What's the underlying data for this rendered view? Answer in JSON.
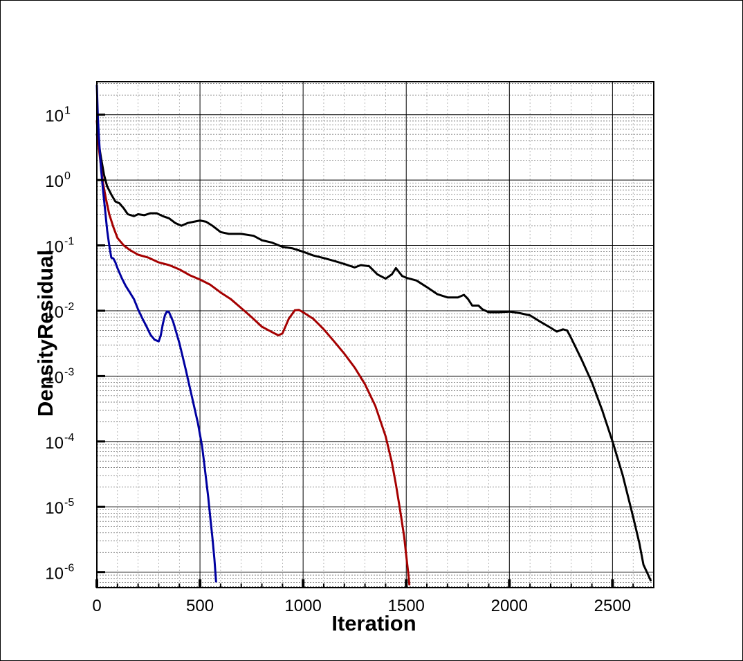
{
  "chart_data": {
    "type": "line",
    "title": "",
    "xlabel": "Iteration",
    "ylabel": "DensityResidual",
    "x_scale": "linear",
    "y_scale": "log",
    "xlim": [
      0,
      2700
    ],
    "ylim": [
      5.8e-07,
      32
    ],
    "grid": true,
    "minor_grid": true,
    "legend": "none",
    "x_ticks": [
      {
        "value": 0,
        "label": "0"
      },
      {
        "value": 500,
        "label": "500"
      },
      {
        "value": 1000,
        "label": "1000"
      },
      {
        "value": 1500,
        "label": "1500"
      },
      {
        "value": 2000,
        "label": "2000"
      },
      {
        "value": 2500,
        "label": "2500"
      }
    ],
    "y_ticks": [
      {
        "value": 10,
        "base": "10",
        "exp": "1"
      },
      {
        "value": 1,
        "base": "10",
        "exp": "0"
      },
      {
        "value": 0.1,
        "base": "10",
        "exp": "-1"
      },
      {
        "value": 0.01,
        "base": "10",
        "exp": "-2"
      },
      {
        "value": 0.001,
        "base": "10",
        "exp": "-3"
      },
      {
        "value": 0.0001,
        "base": "10",
        "exp": "-4"
      },
      {
        "value": 1e-05,
        "base": "10",
        "exp": "-5"
      },
      {
        "value": 1e-06,
        "base": "10",
        "exp": "-6"
      }
    ],
    "series": [
      {
        "color": "#000000",
        "x": [
          0,
          10,
          20,
          35,
          50,
          70,
          90,
          110,
          130,
          150,
          180,
          200,
          230,
          260,
          290,
          320,
          350,
          380,
          410,
          440,
          470,
          500,
          530,
          560,
          600,
          640,
          700,
          760,
          800,
          850,
          900,
          950,
          1000,
          1050,
          1100,
          1150,
          1200,
          1250,
          1280,
          1320,
          1360,
          1400,
          1430,
          1450,
          1480,
          1500,
          1550,
          1600,
          1650,
          1700,
          1750,
          1780,
          1800,
          1820,
          1850,
          1870,
          1900,
          1950,
          2000,
          2050,
          2100,
          2150,
          2200,
          2230,
          2260,
          2280,
          2300,
          2350,
          2400,
          2450,
          2500,
          2550,
          2600,
          2630,
          2650,
          2670,
          2685
        ],
        "y": [
          5,
          3.5,
          2.2,
          1.2,
          0.8,
          0.6,
          0.47,
          0.44,
          0.37,
          0.3,
          0.28,
          0.3,
          0.29,
          0.31,
          0.31,
          0.28,
          0.26,
          0.22,
          0.2,
          0.22,
          0.23,
          0.24,
          0.23,
          0.2,
          0.16,
          0.15,
          0.15,
          0.14,
          0.12,
          0.11,
          0.095,
          0.09,
          0.08,
          0.07,
          0.064,
          0.058,
          0.052,
          0.046,
          0.05,
          0.048,
          0.036,
          0.031,
          0.036,
          0.045,
          0.034,
          0.032,
          0.029,
          0.023,
          0.018,
          0.016,
          0.016,
          0.0175,
          0.015,
          0.012,
          0.012,
          0.0105,
          0.0095,
          0.0095,
          0.0097,
          0.0092,
          0.0085,
          0.0068,
          0.0055,
          0.0048,
          0.0052,
          0.005,
          0.0038,
          0.0018,
          0.0008,
          0.0003,
          0.0001,
          3e-05,
          7e-06,
          2.8e-06,
          1.3e-06,
          9.5e-07,
          7.5e-07
        ]
      },
      {
        "color": "#a50000",
        "x": [
          0,
          10,
          20,
          30,
          45,
          60,
          80,
          100,
          130,
          160,
          200,
          250,
          300,
          350,
          400,
          450,
          500,
          550,
          600,
          650,
          700,
          750,
          800,
          850,
          880,
          900,
          930,
          960,
          980,
          1000,
          1050,
          1100,
          1150,
          1200,
          1250,
          1300,
          1350,
          1400,
          1430,
          1450,
          1470,
          1490,
          1500,
          1510,
          1515
        ],
        "y": [
          8,
          3,
          1.6,
          0.9,
          0.5,
          0.3,
          0.19,
          0.13,
          0.1,
          0.085,
          0.072,
          0.065,
          0.055,
          0.05,
          0.043,
          0.035,
          0.03,
          0.025,
          0.019,
          0.015,
          0.011,
          0.008,
          0.0057,
          0.0047,
          0.0042,
          0.0045,
          0.0075,
          0.0102,
          0.0103,
          0.0095,
          0.0075,
          0.0052,
          0.0034,
          0.0022,
          0.00135,
          0.00075,
          0.00035,
          0.00012,
          4.8e-05,
          2.2e-05,
          9e-06,
          3.5e-06,
          1.8e-06,
          9.5e-07,
          6.5e-07
        ]
      },
      {
        "color": "#0000a0",
        "x": [
          0,
          5,
          10,
          15,
          20,
          30,
          40,
          50,
          60,
          70,
          80,
          90,
          100,
          120,
          140,
          160,
          180,
          200,
          220,
          240,
          260,
          280,
          300,
          310,
          320,
          330,
          340,
          350,
          370,
          400,
          430,
          460,
          490,
          510,
          520,
          530,
          540,
          550,
          560,
          570,
          578
        ],
        "y": [
          28,
          9,
          4.5,
          2.5,
          1.5,
          0.7,
          0.35,
          0.17,
          0.1,
          0.065,
          0.063,
          0.055,
          0.045,
          0.032,
          0.024,
          0.019,
          0.015,
          0.0105,
          0.0077,
          0.0058,
          0.0043,
          0.0036,
          0.0034,
          0.0042,
          0.0063,
          0.0085,
          0.0098,
          0.0095,
          0.0068,
          0.0032,
          0.0013,
          0.0005,
          0.00019,
          8.45e-05,
          4.8e-05,
          2.6e-05,
          1.4e-05,
          6.8e-06,
          3.4e-06,
          1.6e-06,
          7.2e-07
        ]
      }
    ]
  }
}
